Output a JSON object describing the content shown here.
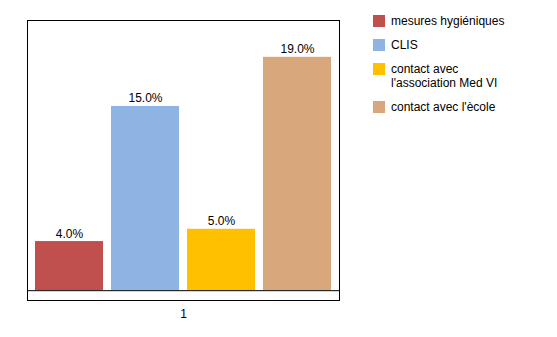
{
  "chart_data": {
    "type": "bar",
    "categories": [
      "1"
    ],
    "series": [
      {
        "name": "mesures hygiéniques",
        "color": "#C0504D",
        "values": [
          4.0
        ],
        "value_labels": [
          "4.0%"
        ]
      },
      {
        "name": "CLIS",
        "color": "#8EB4E3",
        "values": [
          15.0
        ],
        "value_labels": [
          "15.0%"
        ]
      },
      {
        "name": "contact avec\nl'association Med VI",
        "color": "#FFC000",
        "values": [
          5.0
        ],
        "value_labels": [
          "5.0%"
        ]
      },
      {
        "name": "contact avec l'ècole",
        "color": "#D8A87C",
        "values": [
          19.0
        ],
        "value_labels": [
          "19.0%"
        ]
      }
    ],
    "ylim": [
      -0.8,
      22
    ],
    "tick_labels": "x",
    "data_labels": true,
    "legend": "upper right"
  }
}
